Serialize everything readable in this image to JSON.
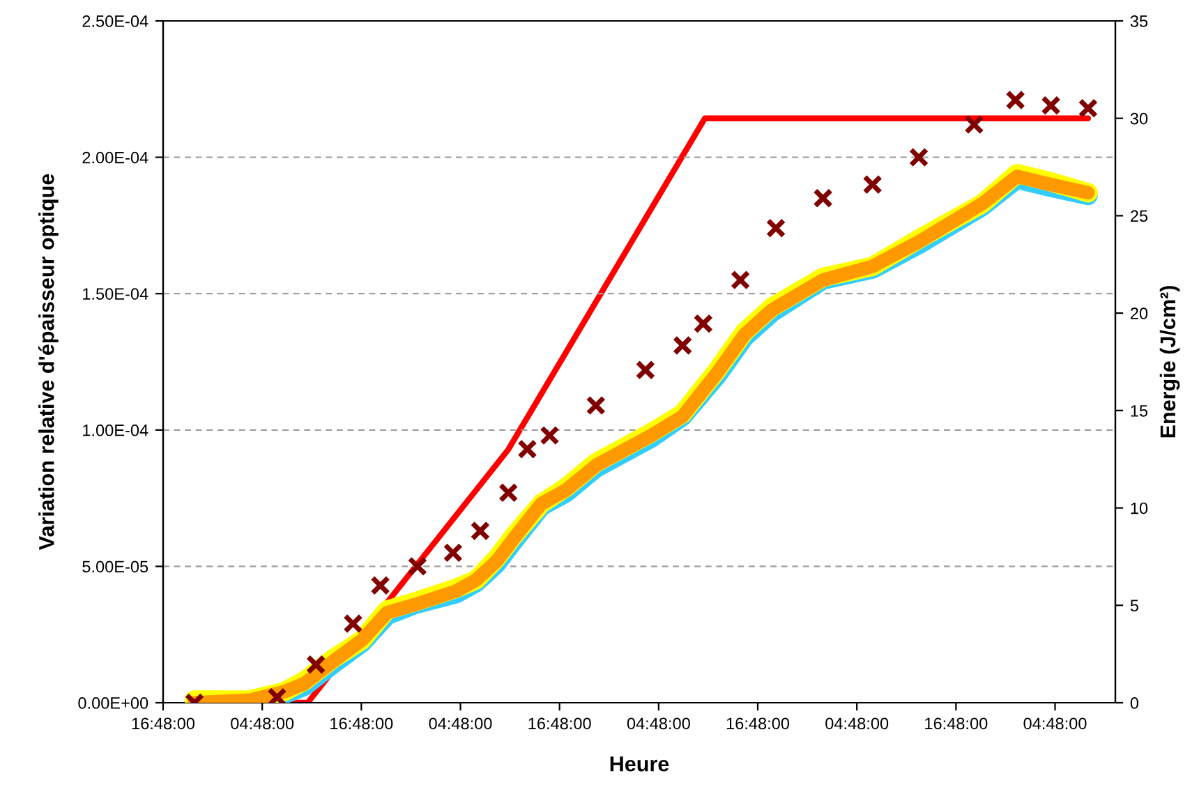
{
  "chart_data": {
    "type": "line",
    "xlabel": "Heure",
    "ylabel": "Variation relative d'épaisseur optique",
    "y2label": "Energie (J/cm²)",
    "xlim": [
      "2000-01-01T16:48",
      "2000-01-06T12:06"
    ],
    "xticks": [
      {
        "value": "2000-01-01T16:48",
        "label": "16:48:00"
      },
      {
        "value": "2000-01-02T04:48",
        "label": "04:48:00"
      },
      {
        "value": "2000-01-02T16:48",
        "label": "16:48:00"
      },
      {
        "value": "2000-01-03T04:48",
        "label": "04:48:00"
      },
      {
        "value": "2000-01-03T16:48",
        "label": "16:48:00"
      },
      {
        "value": "2000-01-04T04:48",
        "label": "04:48:00"
      },
      {
        "value": "2000-01-04T16:48",
        "label": "16:48:00"
      },
      {
        "value": "2000-01-05T04:48",
        "label": "04:48:00"
      },
      {
        "value": "2000-01-05T16:48",
        "label": "16:48:00"
      },
      {
        "value": "2000-01-06T04:48",
        "label": "04:48:00"
      }
    ],
    "ylim": [
      0,
      0.00025
    ],
    "yticks": [
      {
        "value": 0,
        "label": "0.00E+00"
      },
      {
        "value": 5e-05,
        "label": "5.00E-05"
      },
      {
        "value": 0.0001,
        "label": "1.00E-04"
      },
      {
        "value": 0.00015,
        "label": "1.50E-04"
      },
      {
        "value": 0.0002,
        "label": "2.00E-04"
      },
      {
        "value": 0.00025,
        "label": "2.50E-04"
      }
    ],
    "y2lim": [
      0,
      35
    ],
    "y2ticks": [
      0,
      5,
      10,
      15,
      20,
      25,
      30,
      35
    ],
    "grid": "y",
    "legend": false,
    "series": [
      {
        "color": "#33ccff",
        "x": [
          "2000-01-01T20:36",
          "2000-01-02T03:18",
          "2000-01-02T07:24",
          "2000-01-02T09:54",
          "2000-01-02T13:18",
          "2000-01-02T16:54",
          "2000-01-02T19:54",
          "2000-01-02T23:18",
          "2000-01-03T04:18",
          "2000-01-03T06:42",
          "2000-01-03T09:12",
          "2000-01-03T11:12",
          "2000-01-03T14:36",
          "2000-01-03T17:36",
          "2000-01-03T21:12",
          "2000-01-04T03:54",
          "2000-01-04T07:42",
          "2000-01-04T11:54",
          "2000-01-04T15:12",
          "2000-01-04T18:30",
          "2000-01-05T00:42",
          "2000-01-05T06:42",
          "2000-01-05T12:18",
          "2000-01-05T20:00",
          "2000-01-06T00:12",
          "2000-01-06T04:18",
          "2000-01-06T08:48"
        ],
        "values": [
          0,
          0,
          3e-06,
          6e-06,
          1.4e-05,
          2.2e-05,
          3.2e-05,
          3.6e-05,
          4e-05,
          4.4e-05,
          5.1e-05,
          5.9e-05,
          7.2e-05,
          7.7e-05,
          8.6e-05,
          9.7e-05,
          0.000105,
          0.00012,
          0.000134,
          0.000143,
          0.000155,
          0.000159,
          0.000168,
          0.000182,
          0.000192,
          0.000189,
          0.000186
        ]
      },
      {
        "color": "#ffff00",
        "x": [
          "2000-01-01T20:36",
          "2000-01-02T03:18",
          "2000-01-02T07:24",
          "2000-01-02T09:54",
          "2000-01-02T13:18",
          "2000-01-02T16:54",
          "2000-01-02T19:54",
          "2000-01-02T23:18",
          "2000-01-03T04:18",
          "2000-01-03T06:42",
          "2000-01-03T09:12",
          "2000-01-03T11:12",
          "2000-01-03T14:36",
          "2000-01-03T17:36",
          "2000-01-03T21:12",
          "2000-01-04T03:54",
          "2000-01-04T07:42",
          "2000-01-04T11:54",
          "2000-01-04T15:12",
          "2000-01-04T18:30",
          "2000-01-05T00:42",
          "2000-01-05T06:42",
          "2000-01-05T12:18",
          "2000-01-05T20:00",
          "2000-01-06T00:12",
          "2000-01-06T04:18",
          "2000-01-06T08:48"
        ],
        "values": [
          1e-06,
          1e-06,
          4e-06,
          8e-06,
          1.6e-05,
          2.3e-05,
          3.4e-05,
          3.7e-05,
          4.2e-05,
          4.5e-05,
          5.3e-05,
          6.1e-05,
          7.3e-05,
          7.9e-05,
          8.8e-05,
          9.9e-05,
          0.000106,
          0.000122,
          0.000136,
          0.000145,
          0.000156,
          0.00016,
          0.00017,
          0.000183,
          0.000194,
          0.000191,
          0.000187
        ]
      },
      {
        "color": "#ff9900",
        "x": [
          "2000-01-01T20:36",
          "2000-01-02T03:18",
          "2000-01-02T07:24",
          "2000-01-02T09:54",
          "2000-01-02T13:18",
          "2000-01-02T16:54",
          "2000-01-02T19:54",
          "2000-01-02T23:18",
          "2000-01-03T04:18",
          "2000-01-03T06:42",
          "2000-01-03T09:12",
          "2000-01-03T11:12",
          "2000-01-03T14:36",
          "2000-01-03T17:36",
          "2000-01-03T21:12",
          "2000-01-04T03:54",
          "2000-01-04T07:42",
          "2000-01-04T11:54",
          "2000-01-04T15:12",
          "2000-01-04T18:30",
          "2000-01-05T00:42",
          "2000-01-05T06:42",
          "2000-01-05T12:18",
          "2000-01-05T20:00",
          "2000-01-06T00:12",
          "2000-01-06T04:18",
          "2000-01-06T08:48"
        ],
        "values": [
          0,
          1e-06,
          4e-06,
          7e-06,
          1.5e-05,
          2.3e-05,
          3.3e-05,
          3.6e-05,
          4.1e-05,
          4.5e-05,
          5.2e-05,
          6e-05,
          7.3e-05,
          7.8e-05,
          8.7e-05,
          9.8e-05,
          0.000105,
          0.000121,
          0.000135,
          0.000144,
          0.000155,
          0.00016,
          0.000169,
          0.000183,
          0.000193,
          0.00019,
          0.000187
        ]
      },
      {
        "type": "scatter",
        "marker": "cross",
        "color": "#800000",
        "x": [
          "2000-01-01T20:36",
          "2000-01-02T06:36",
          "2000-01-02T11:18",
          "2000-01-02T15:48",
          "2000-01-02T19:06",
          "2000-01-02T23:36",
          "2000-01-03T03:54",
          "2000-01-03T07:12",
          "2000-01-03T10:36",
          "2000-01-03T12:54",
          "2000-01-03T15:36",
          "2000-01-03T21:12",
          "2000-01-04T03:12",
          "2000-01-04T07:42",
          "2000-01-04T10:12",
          "2000-01-04T14:42",
          "2000-01-04T19:00",
          "2000-01-05T00:42",
          "2000-01-05T06:42",
          "2000-01-05T12:18",
          "2000-01-05T19:00",
          "2000-01-06T00:00",
          "2000-01-06T04:18",
          "2000-01-06T08:48"
        ],
        "values": [
          0,
          2e-06,
          1.4e-05,
          2.9e-05,
          4.3e-05,
          5e-05,
          5.5e-05,
          6.3e-05,
          7.7e-05,
          9.3e-05,
          9.8e-05,
          0.000109,
          0.000122,
          0.000131,
          0.000139,
          0.000155,
          0.000174,
          0.000185,
          0.00019,
          0.0002,
          0.000212,
          0.000221,
          0.000219,
          0.000218
        ]
      },
      {
        "axis": "y2",
        "color": "#ff0000",
        "x": [
          "2000-01-01T20:36",
          "2000-01-02T10:18",
          "2000-01-03T10:36",
          "2000-01-04T10:24",
          "2000-01-06T08:48"
        ],
        "values": [
          0,
          0,
          13,
          30,
          30
        ]
      }
    ]
  }
}
